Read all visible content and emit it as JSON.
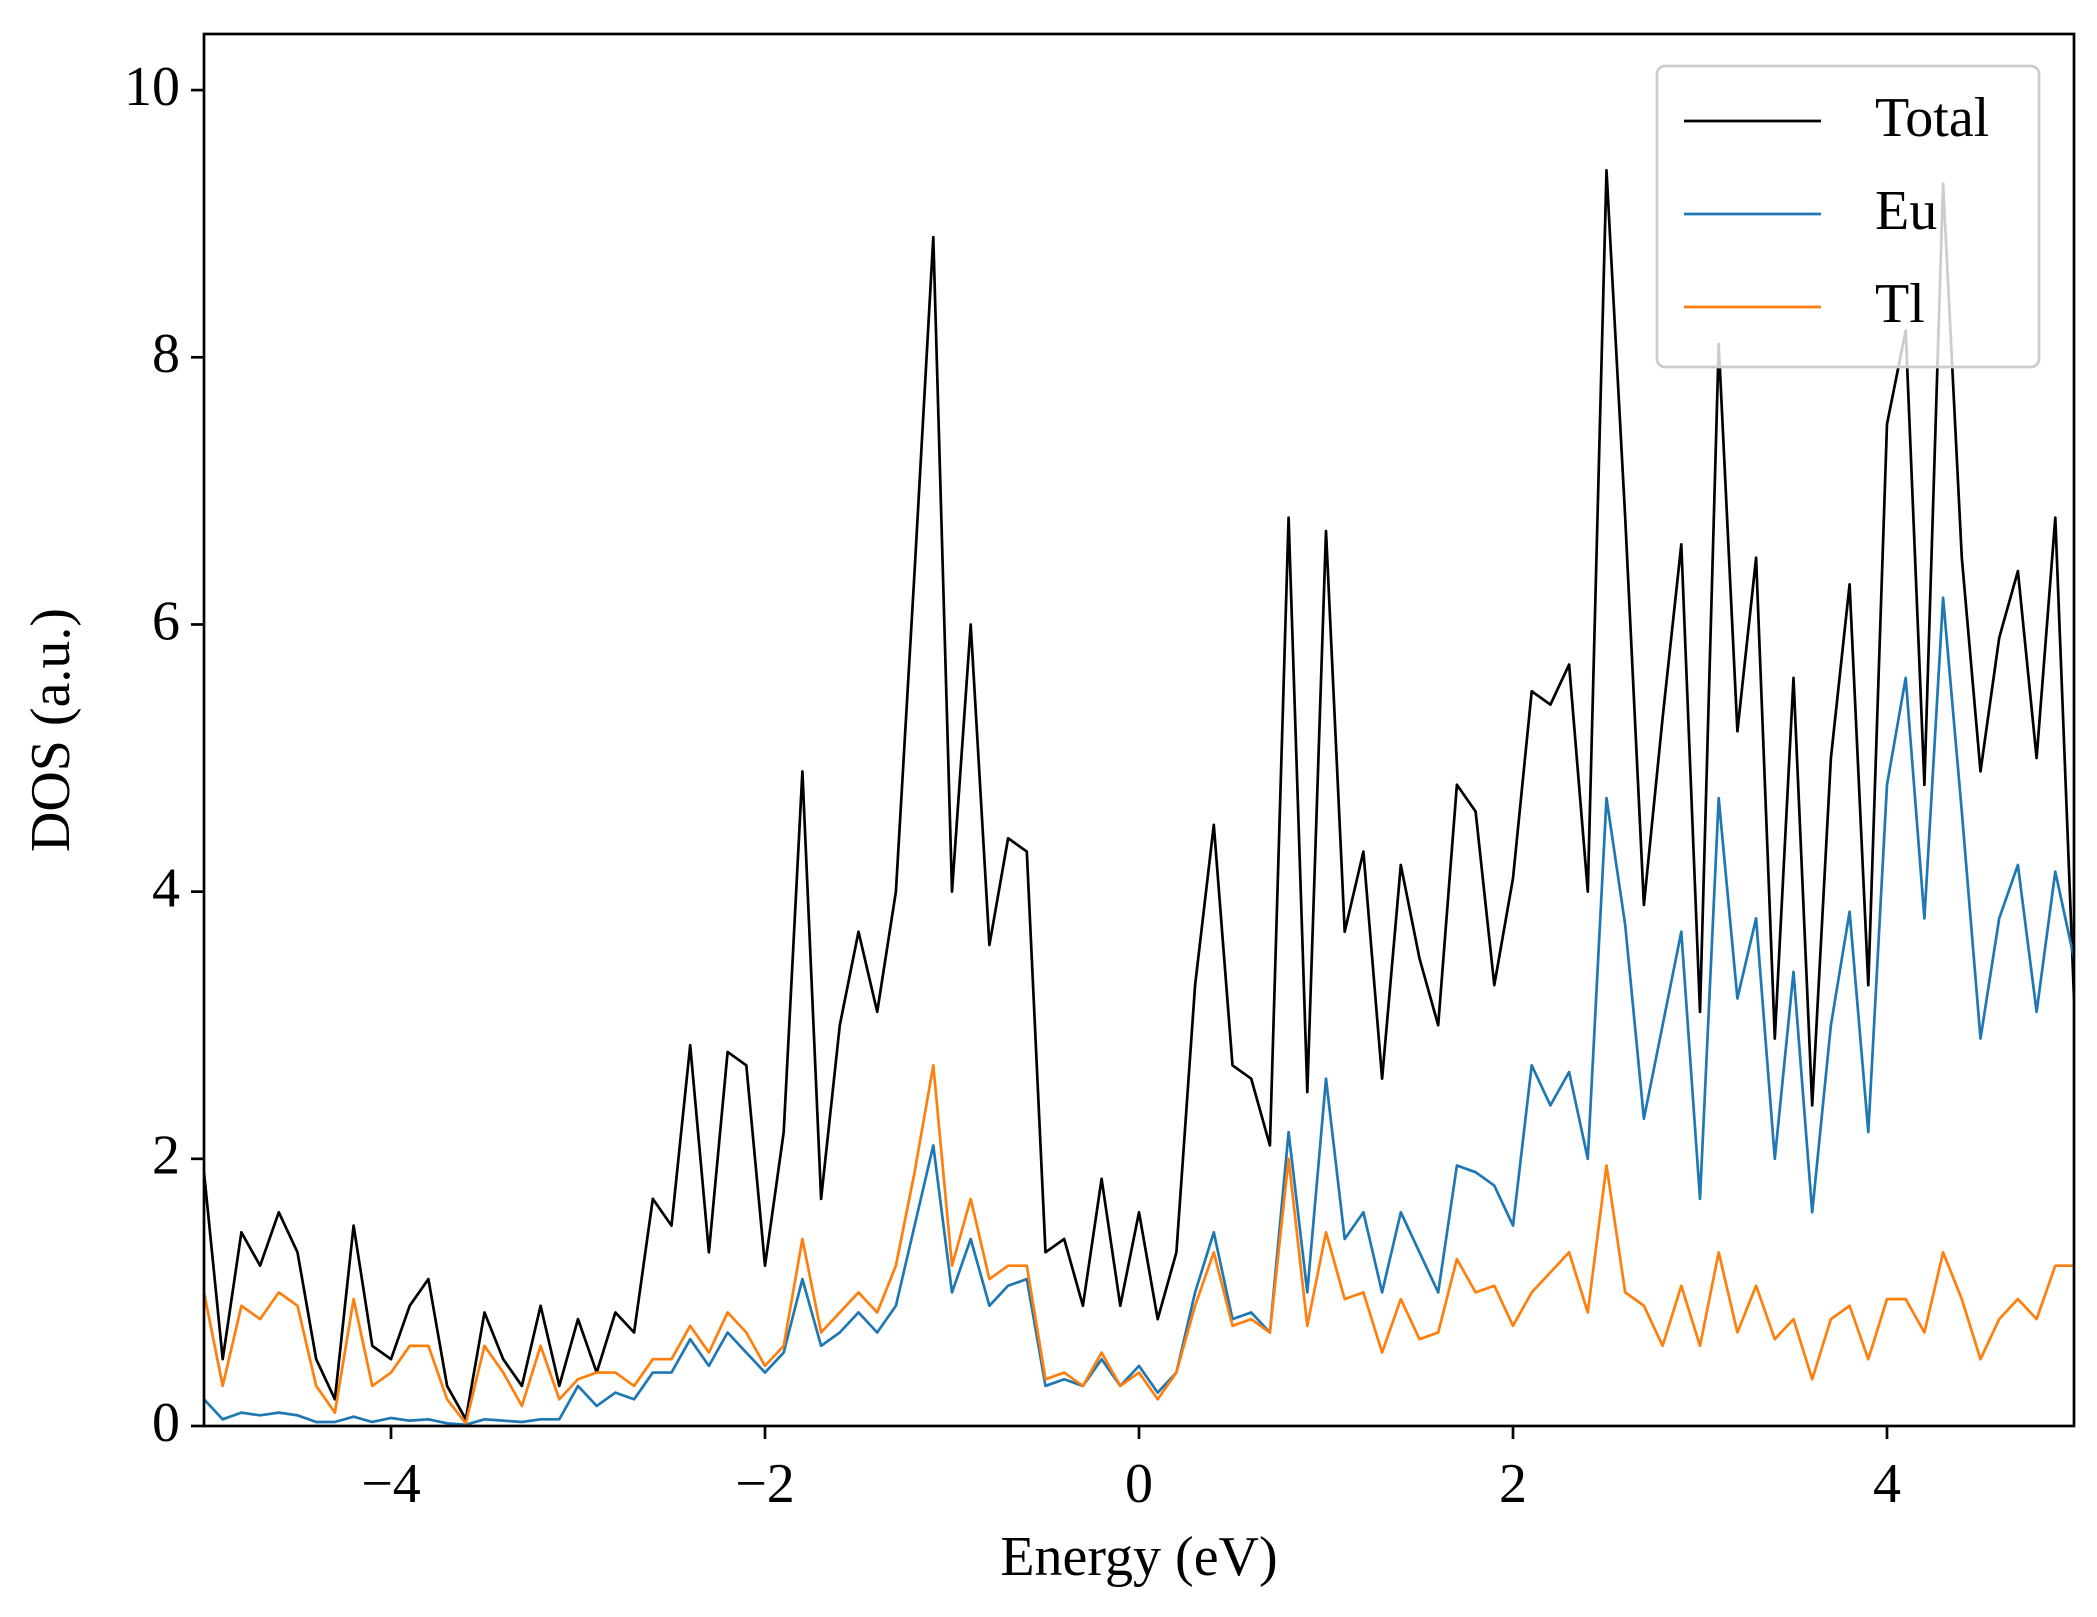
{
  "chart_data": {
    "type": "line",
    "xlabel": "Energy (eV)",
    "ylabel": "DOS (a.u.)",
    "x": [
      -5.0,
      -4.9,
      -4.8,
      -4.7,
      -4.6,
      -4.5,
      -4.4,
      -4.3,
      -4.2,
      -4.1,
      -4.0,
      -3.9,
      -3.8,
      -3.7,
      -3.6,
      -3.5,
      -3.4,
      -3.3,
      -3.2,
      -3.1,
      -3.0,
      -2.9,
      -2.8,
      -2.7,
      -2.6,
      -2.5,
      -2.4,
      -2.3,
      -2.2,
      -2.1,
      -2.0,
      -1.9,
      -1.8,
      -1.7,
      -1.6,
      -1.5,
      -1.4,
      -1.3,
      -1.2,
      -1.1,
      -1.0,
      -0.9,
      -0.8,
      -0.7,
      -0.6,
      -0.5,
      -0.4,
      -0.3,
      -0.2,
      -0.1,
      0.0,
      0.1,
      0.2,
      0.3,
      0.4,
      0.5,
      0.6,
      0.7,
      0.8,
      0.9,
      1.0,
      1.1,
      1.2,
      1.3,
      1.4,
      1.5,
      1.6,
      1.7,
      1.8,
      1.9,
      2.0,
      2.1,
      2.2,
      2.3,
      2.4,
      2.5,
      2.6,
      2.7,
      2.8,
      2.9,
      3.0,
      3.1,
      3.2,
      3.3,
      3.4,
      3.5,
      3.6,
      3.7,
      3.8,
      3.9,
      4.0,
      4.1,
      4.2,
      4.3,
      4.4,
      4.5,
      4.6,
      4.7,
      4.8,
      4.9,
      5.0
    ],
    "series": [
      {
        "name": "Total",
        "color": "#000000",
        "values": [
          1.9,
          0.5,
          1.45,
          1.2,
          1.6,
          1.3,
          0.5,
          0.2,
          1.5,
          0.6,
          0.5,
          0.9,
          1.1,
          0.3,
          0.05,
          0.85,
          0.5,
          0.3,
          0.9,
          0.3,
          0.8,
          0.4,
          0.85,
          0.7,
          1.7,
          1.5,
          2.85,
          1.3,
          2.8,
          2.7,
          1.2,
          2.2,
          4.9,
          1.7,
          3.0,
          3.7,
          3.1,
          4.0,
          6.4,
          8.9,
          4.0,
          6.0,
          3.6,
          4.4,
          4.3,
          1.3,
          1.4,
          0.9,
          1.85,
          0.9,
          1.6,
          0.8,
          1.3,
          3.3,
          4.5,
          2.7,
          2.6,
          2.1,
          6.8,
          2.5,
          6.7,
          3.7,
          4.3,
          2.6,
          4.2,
          3.5,
          3.0,
          4.8,
          4.6,
          3.3,
          4.1,
          5.5,
          5.4,
          5.7,
          4.0,
          9.4,
          6.8,
          3.9,
          5.3,
          6.6,
          3.1,
          8.1,
          5.2,
          6.5,
          2.9,
          5.6,
          2.4,
          5.0,
          6.3,
          3.3,
          7.5,
          8.2,
          4.8,
          9.3,
          6.5,
          4.9,
          5.9,
          6.4,
          5.0,
          6.8,
          3.2
        ]
      },
      {
        "name": "Eu",
        "color": "#1f77b4",
        "values": [
          0.2,
          0.05,
          0.1,
          0.08,
          0.1,
          0.08,
          0.03,
          0.03,
          0.07,
          0.03,
          0.06,
          0.04,
          0.05,
          0.02,
          0.01,
          0.05,
          0.04,
          0.03,
          0.05,
          0.05,
          0.3,
          0.15,
          0.25,
          0.2,
          0.4,
          0.4,
          0.65,
          0.45,
          0.7,
          0.55,
          0.4,
          0.55,
          1.1,
          0.6,
          0.7,
          0.85,
          0.7,
          0.9,
          1.5,
          2.1,
          1.0,
          1.4,
          0.9,
          1.05,
          1.1,
          0.3,
          0.35,
          0.3,
          0.5,
          0.3,
          0.45,
          0.25,
          0.4,
          1.0,
          1.45,
          0.8,
          0.85,
          0.7,
          2.2,
          1.0,
          2.6,
          1.4,
          1.6,
          1.0,
          1.6,
          1.3,
          1.0,
          1.95,
          1.9,
          1.8,
          1.5,
          2.7,
          2.4,
          2.65,
          2.0,
          4.7,
          3.75,
          2.3,
          3.0,
          3.7,
          1.7,
          4.7,
          3.2,
          3.8,
          2.0,
          3.4,
          1.6,
          3.0,
          3.85,
          2.2,
          4.8,
          5.6,
          3.8,
          6.2,
          4.6,
          2.9,
          3.8,
          4.2,
          3.1,
          4.15,
          3.5
        ]
      },
      {
        "name": "Tl",
        "color": "#ff7f0e",
        "values": [
          1.0,
          0.3,
          0.9,
          0.8,
          1.0,
          0.9,
          0.3,
          0.1,
          0.95,
          0.3,
          0.4,
          0.6,
          0.6,
          0.2,
          0.02,
          0.6,
          0.4,
          0.15,
          0.6,
          0.2,
          0.35,
          0.4,
          0.4,
          0.3,
          0.5,
          0.5,
          0.75,
          0.55,
          0.85,
          0.7,
          0.45,
          0.6,
          1.4,
          0.7,
          0.85,
          1.0,
          0.85,
          1.2,
          1.9,
          2.7,
          1.2,
          1.7,
          1.1,
          1.2,
          1.2,
          0.35,
          0.4,
          0.3,
          0.55,
          0.3,
          0.4,
          0.2,
          0.4,
          0.9,
          1.3,
          0.75,
          0.8,
          0.7,
          2.0,
          0.75,
          1.45,
          0.95,
          1.0,
          0.55,
          0.95,
          0.65,
          0.7,
          1.25,
          1.0,
          1.05,
          0.75,
          1.0,
          1.15,
          1.3,
          0.85,
          1.95,
          1.0,
          0.9,
          0.6,
          1.05,
          0.6,
          1.3,
          0.7,
          1.05,
          0.65,
          0.8,
          0.35,
          0.8,
          0.9,
          0.5,
          0.95,
          0.95,
          0.7,
          1.3,
          0.95,
          0.5,
          0.8,
          0.95,
          0.8,
          1.2,
          1.2
        ]
      }
    ],
    "xlim": [
      -5,
      5
    ],
    "ylim": [
      0,
      10.42
    ],
    "xticks": [
      {
        "value": -4,
        "label": "−4"
      },
      {
        "value": -2,
        "label": "−2"
      },
      0,
      2,
      4
    ],
    "yticks": [
      0,
      2,
      4,
      6,
      8,
      10
    ],
    "grid": false,
    "legend": "upper right"
  }
}
